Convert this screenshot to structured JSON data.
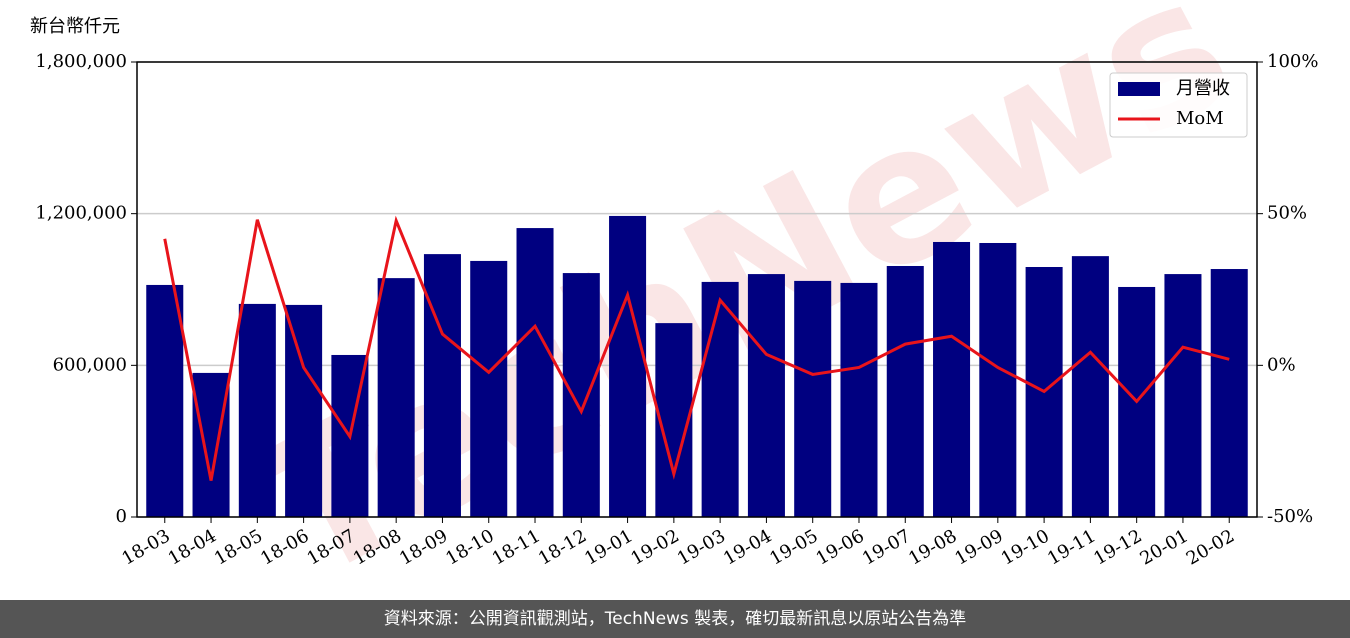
{
  "chart_data": {
    "type": "bar-line",
    "y_label": "新台幣仟元",
    "watermark": "TechNews",
    "footer": "資料來源：公開資訊觀測站，TechNews 製表，確切最新訊息以原站公告為準",
    "categories": [
      "18-03",
      "18-04",
      "18-05",
      "18-06",
      "18-07",
      "18-08",
      "18-09",
      "18-10",
      "18-11",
      "18-12",
      "19-01",
      "19-02",
      "19-03",
      "19-04",
      "19-05",
      "19-06",
      "19-07",
      "19-08",
      "19-09",
      "19-10",
      "19-11",
      "19-12",
      "20-01",
      "20-02"
    ],
    "series": [
      {
        "name": "月營收",
        "type": "bar",
        "color": "#000080",
        "values": [
          918000,
          570000,
          843000,
          839000,
          641000,
          945000,
          1040000,
          1013000,
          1143000,
          965000,
          1191000,
          767000,
          930000,
          961000,
          934000,
          926000,
          993000,
          1088000,
          1084000,
          989000,
          1032000,
          910000,
          961000,
          981000
        ]
      },
      {
        "name": "MoM",
        "type": "line",
        "axis": "y2",
        "color": "#e8141b",
        "values": [
          41.7,
          -38,
          48,
          -0.7,
          -23.5,
          47.7,
          10.3,
          -2.3,
          12.9,
          -15.2,
          23.2,
          -35.8,
          21.5,
          3.6,
          -3,
          -0.7,
          7,
          9.6,
          -0.7,
          -8.6,
          4.3,
          -11.9,
          6,
          2
        ]
      }
    ],
    "ylim": [
      0,
      1800000
    ],
    "yticks": [
      0,
      {
        "value": 600000,
        "label": "600,000"
      },
      {
        "value": 1200000,
        "label": "1,200,000"
      },
      {
        "value": 1800000,
        "label": "1,800,000"
      }
    ],
    "y2lim": [
      -50,
      100
    ],
    "y2ticks": [
      {
        "value": -50,
        "label": "-50%"
      },
      {
        "value": 0,
        "label": "0%"
      },
      {
        "value": 50,
        "label": "50%"
      },
      {
        "value": 100,
        "label": "100%"
      }
    ],
    "grid": true,
    "legend": "upper right"
  }
}
